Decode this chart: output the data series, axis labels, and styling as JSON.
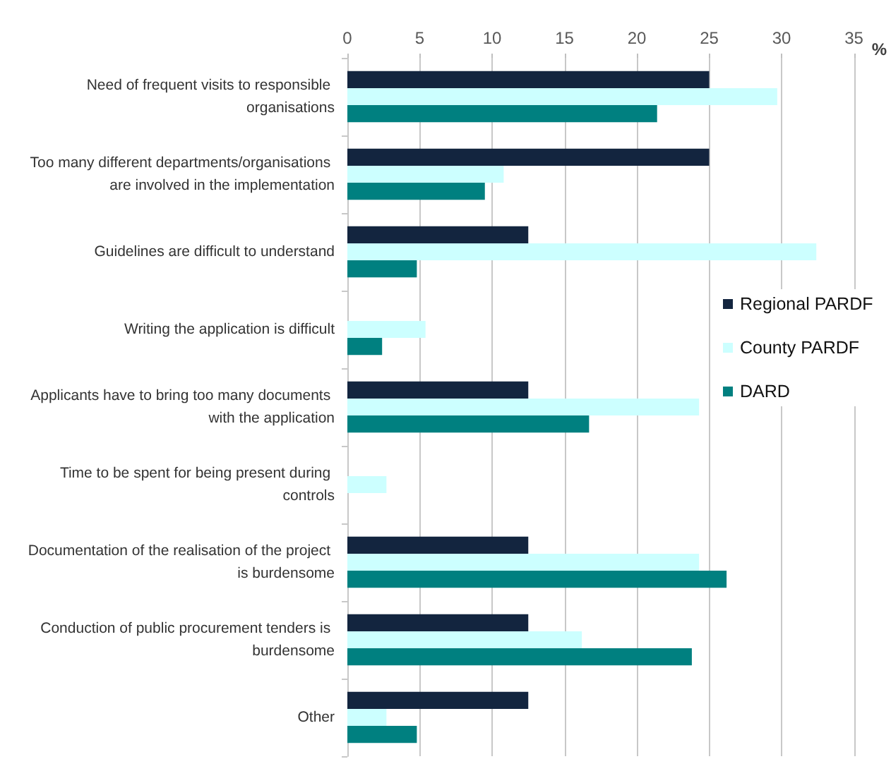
{
  "chart_data": {
    "type": "bar",
    "orientation": "horizontal",
    "xlabel": "%",
    "categories": [
      "Need of frequent visits to responsible organisations",
      "Too many different departments/organisations are involved in the implementation",
      "Guidelines are difficult to understand",
      "Writing the application is difficult",
      "Applicants have to bring too many documents with the application",
      "Time to be spent for being present during controls",
      "Documentation of the realisation of the project is burdensome",
      "Conduction of public procurement tenders is burdensome",
      "Other"
    ],
    "series": [
      {
        "name": "Regional PARDF",
        "color": "#13253f",
        "values": [
          25,
          25,
          12.5,
          0,
          12.5,
          0,
          12.5,
          12.5,
          12.5
        ]
      },
      {
        "name": "County PARDF",
        "color": "#ccffff",
        "values": [
          29.7,
          10.8,
          32.4,
          5.4,
          24.3,
          2.7,
          24.3,
          16.2,
          2.7
        ]
      },
      {
        "name": "DARD",
        "color": "#008080",
        "values": [
          21.4,
          9.5,
          4.8,
          2.4,
          16.7,
          0,
          26.2,
          23.8,
          4.8
        ]
      }
    ],
    "xlim": [
      0,
      35
    ],
    "xticks": [
      0,
      5,
      10,
      15,
      20,
      25,
      30,
      35
    ],
    "grid": "x",
    "legend": "right"
  }
}
